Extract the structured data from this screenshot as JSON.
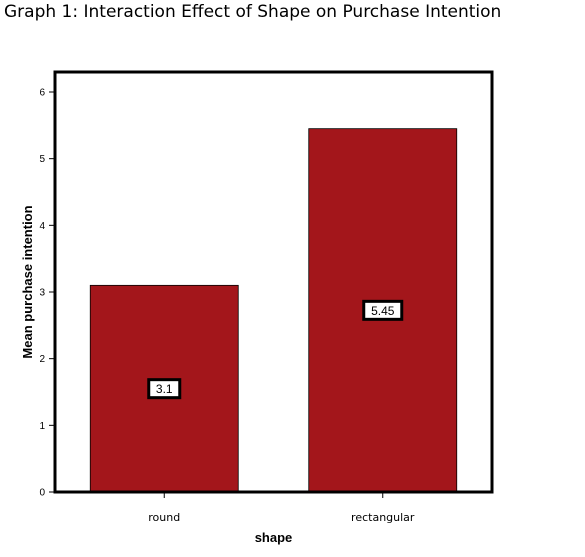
{
  "chart_data": {
    "type": "bar",
    "title": "Graph 1: Interaction Effect of Shape on Purchase Intention",
    "xlabel": "shape",
    "ylabel": "Mean purchase intention",
    "categories": [
      "round",
      "rectangular"
    ],
    "values": [
      3.1,
      5.45
    ],
    "data_labels": [
      "3.1",
      "5.45"
    ],
    "ylim": [
      0,
      6.3
    ],
    "yticks": [
      0,
      1,
      2,
      3,
      4,
      5,
      6
    ],
    "ytick_labels": [
      "0",
      "1",
      "2",
      "3",
      "4",
      "5",
      "6"
    ],
    "grid": false,
    "legend": "none",
    "bar_color": "#a3161b",
    "frame_color": "#000000"
  }
}
